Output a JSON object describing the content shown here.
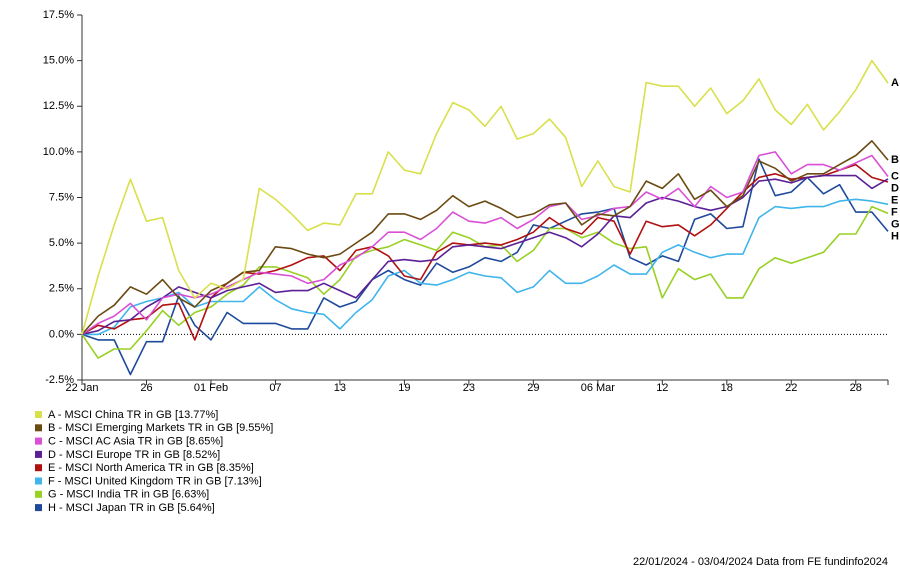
{
  "chart_data": {
    "type": "line",
    "categories": [
      "22 Jan",
      null,
      null,
      null,
      "26",
      null,
      null,
      null,
      "01 Feb",
      null,
      null,
      null,
      "07",
      null,
      null,
      null,
      "13",
      null,
      null,
      null,
      "19",
      null,
      null,
      null,
      "23",
      null,
      null,
      null,
      "29",
      null,
      null,
      null,
      "06 Mar",
      null,
      null,
      null,
      "12",
      null,
      null,
      null,
      "18",
      null,
      null,
      null,
      "22",
      null,
      null,
      null,
      "28",
      null,
      null
    ],
    "ylim": [
      -2.5,
      17.5
    ],
    "yticks": [
      {
        "value": -2.5,
        "label": "-2.5%"
      },
      {
        "value": 0,
        "label": "0.0%"
      },
      {
        "value": 2.5,
        "label": "2.5%"
      },
      {
        "value": 5,
        "label": "5.0%"
      },
      {
        "value": 7.5,
        "label": "7.5%"
      },
      {
        "value": 10,
        "label": "10.0%"
      },
      {
        "value": 12.5,
        "label": "12.5%"
      },
      {
        "value": 15,
        "label": "15.0%"
      },
      {
        "value": 17.5,
        "label": "17.5%"
      }
    ],
    "series": [
      {
        "name": "A - MSCI China TR in GB [13.77%]",
        "tag": "A",
        "color": "#d8e04a",
        "values": [
          0,
          3.2,
          6.0,
          8.5,
          6.2,
          6.4,
          3.5,
          2.0,
          2.8,
          2.5,
          3.0,
          8.0,
          7.4,
          6.6,
          5.7,
          6.1,
          6.0,
          7.7,
          7.7,
          10.0,
          9.0,
          8.8,
          11.0,
          12.7,
          12.3,
          11.4,
          12.5,
          10.7,
          11.0,
          11.8,
          10.8,
          8.1,
          9.5,
          8.1,
          7.8,
          13.8,
          13.6,
          13.6,
          12.5,
          13.5,
          12.1,
          12.8,
          14.0,
          12.3,
          11.5,
          12.6,
          11.2,
          12.2,
          13.4,
          15.0,
          13.77
        ]
      },
      {
        "name": "B - MSCI Emerging Markets TR in GB [9.55%]",
        "tag": "B",
        "color": "#6b4a12",
        "values": [
          0,
          1.0,
          1.6,
          2.6,
          2.2,
          3.0,
          2.0,
          1.5,
          2.4,
          2.8,
          3.4,
          3.5,
          4.8,
          4.7,
          4.4,
          4.2,
          4.4,
          5.0,
          5.6,
          6.6,
          6.6,
          6.3,
          6.8,
          7.6,
          7.0,
          7.3,
          6.9,
          6.4,
          6.6,
          7.1,
          7.2,
          6.0,
          6.6,
          6.5,
          7.0,
          8.4,
          8.0,
          8.8,
          7.4,
          7.9,
          7.0,
          7.6,
          9.5,
          9.1,
          8.4,
          8.8,
          8.8,
          9.3,
          9.8,
          10.6,
          9.55
        ]
      },
      {
        "name": "C - MSCI AC Asia TR in GB [8.65%]",
        "tag": "C",
        "color": "#d94fd6",
        "values": [
          0,
          0.6,
          1.0,
          1.7,
          0.8,
          2.0,
          2.2,
          2.0,
          2.2,
          2.6,
          3.0,
          3.4,
          3.3,
          3.2,
          2.8,
          3.0,
          3.8,
          4.2,
          4.8,
          5.6,
          5.6,
          5.2,
          5.8,
          6.7,
          6.2,
          6.1,
          6.4,
          5.8,
          6.3,
          7.0,
          7.2,
          6.3,
          6.5,
          6.9,
          7.0,
          7.8,
          7.4,
          8.0,
          7.0,
          8.1,
          7.5,
          7.8,
          9.8,
          10.0,
          8.8,
          9.3,
          9.3,
          9.0,
          9.4,
          9.8,
          8.65
        ]
      },
      {
        "name": "D - MSCI Europe TR in GB [8.52%]",
        "tag": "D",
        "color": "#5b2096",
        "values": [
          0,
          0.2,
          0.7,
          0.8,
          1.5,
          2.0,
          2.6,
          2.3,
          2.0,
          2.4,
          2.6,
          2.8,
          2.3,
          2.4,
          2.4,
          2.8,
          2.4,
          2.0,
          3.0,
          4.0,
          4.1,
          4.0,
          4.1,
          4.8,
          4.9,
          4.8,
          4.7,
          5.0,
          5.3,
          5.6,
          5.3,
          4.8,
          5.5,
          6.5,
          6.4,
          7.2,
          7.5,
          7.3,
          7.0,
          6.8,
          7.0,
          7.5,
          8.4,
          8.5,
          8.3,
          8.6,
          8.7,
          8.7,
          8.7,
          8.0,
          8.52
        ]
      },
      {
        "name": "E - MSCI North America TR in GB [8.35%]",
        "tag": "E",
        "color": "#b01010",
        "values": [
          0,
          0.5,
          0.3,
          0.8,
          0.9,
          1.6,
          1.7,
          -0.3,
          2.0,
          2.8,
          3.4,
          3.3,
          3.5,
          3.8,
          4.2,
          4.3,
          3.5,
          4.6,
          4.8,
          4.3,
          3.2,
          3.0,
          4.5,
          5.0,
          4.9,
          5.0,
          4.9,
          5.2,
          5.6,
          6.4,
          5.8,
          5.5,
          6.4,
          6.2,
          4.4,
          6.2,
          5.9,
          6.0,
          5.4,
          6.0,
          6.9,
          7.8,
          8.6,
          8.8,
          8.5,
          8.6,
          8.7,
          9.0,
          9.3,
          8.6,
          8.35
        ]
      },
      {
        "name": "F - MSCI United Kingdom TR in GB [7.13%]",
        "tag": "F",
        "color": "#3fb5ec",
        "values": [
          0,
          0.0,
          0.4,
          1.5,
          1.8,
          2.0,
          2.3,
          1.5,
          1.8,
          1.8,
          1.8,
          2.6,
          1.9,
          1.4,
          1.2,
          1.1,
          0.3,
          1.2,
          1.9,
          3.2,
          3.5,
          2.8,
          2.7,
          3.0,
          3.4,
          3.2,
          3.1,
          2.3,
          2.6,
          3.5,
          2.8,
          2.8,
          3.2,
          3.8,
          3.3,
          3.3,
          4.5,
          4.9,
          4.5,
          4.2,
          4.4,
          4.4,
          6.4,
          7.0,
          6.9,
          7.0,
          7.0,
          7.3,
          7.4,
          7.3,
          7.13
        ]
      },
      {
        "name": "G - MSCI India TR in GB [6.63%]",
        "tag": "G",
        "color": "#98d024",
        "values": [
          0,
          -1.3,
          -0.8,
          -0.8,
          0.2,
          1.3,
          0.5,
          1.2,
          1.5,
          2.2,
          2.7,
          3.7,
          3.7,
          3.4,
          3.1,
          2.2,
          3.0,
          4.3,
          4.6,
          4.8,
          5.2,
          4.9,
          4.6,
          5.6,
          5.3,
          4.8,
          4.9,
          4.0,
          4.6,
          5.8,
          5.8,
          5.3,
          5.6,
          5.0,
          4.7,
          4.8,
          2.0,
          3.6,
          3.0,
          3.3,
          2.0,
          2.0,
          3.6,
          4.2,
          3.9,
          4.2,
          4.5,
          5.5,
          5.5,
          7.0,
          6.63
        ]
      },
      {
        "name": "H - MSCI Japan TR in GB [5.64%]",
        "tag": "H",
        "color": "#1f4a9c",
        "values": [
          0,
          -0.3,
          -0.3,
          -2.2,
          -0.4,
          -0.4,
          2.1,
          0.5,
          -0.3,
          1.2,
          0.6,
          0.6,
          0.6,
          0.3,
          0.3,
          2.0,
          1.5,
          1.8,
          3.0,
          3.5,
          3.0,
          2.7,
          3.9,
          3.4,
          3.7,
          4.2,
          4.0,
          4.5,
          6.0,
          5.8,
          6.2,
          6.6,
          6.7,
          6.9,
          4.2,
          3.8,
          4.3,
          4.0,
          6.3,
          6.6,
          5.8,
          5.9,
          9.6,
          7.6,
          7.8,
          8.6,
          7.7,
          8.2,
          6.7,
          6.7,
          5.64
        ]
      }
    ],
    "footer": "22/01/2024 - 03/04/2024 Data from FE fundinfo2024"
  }
}
